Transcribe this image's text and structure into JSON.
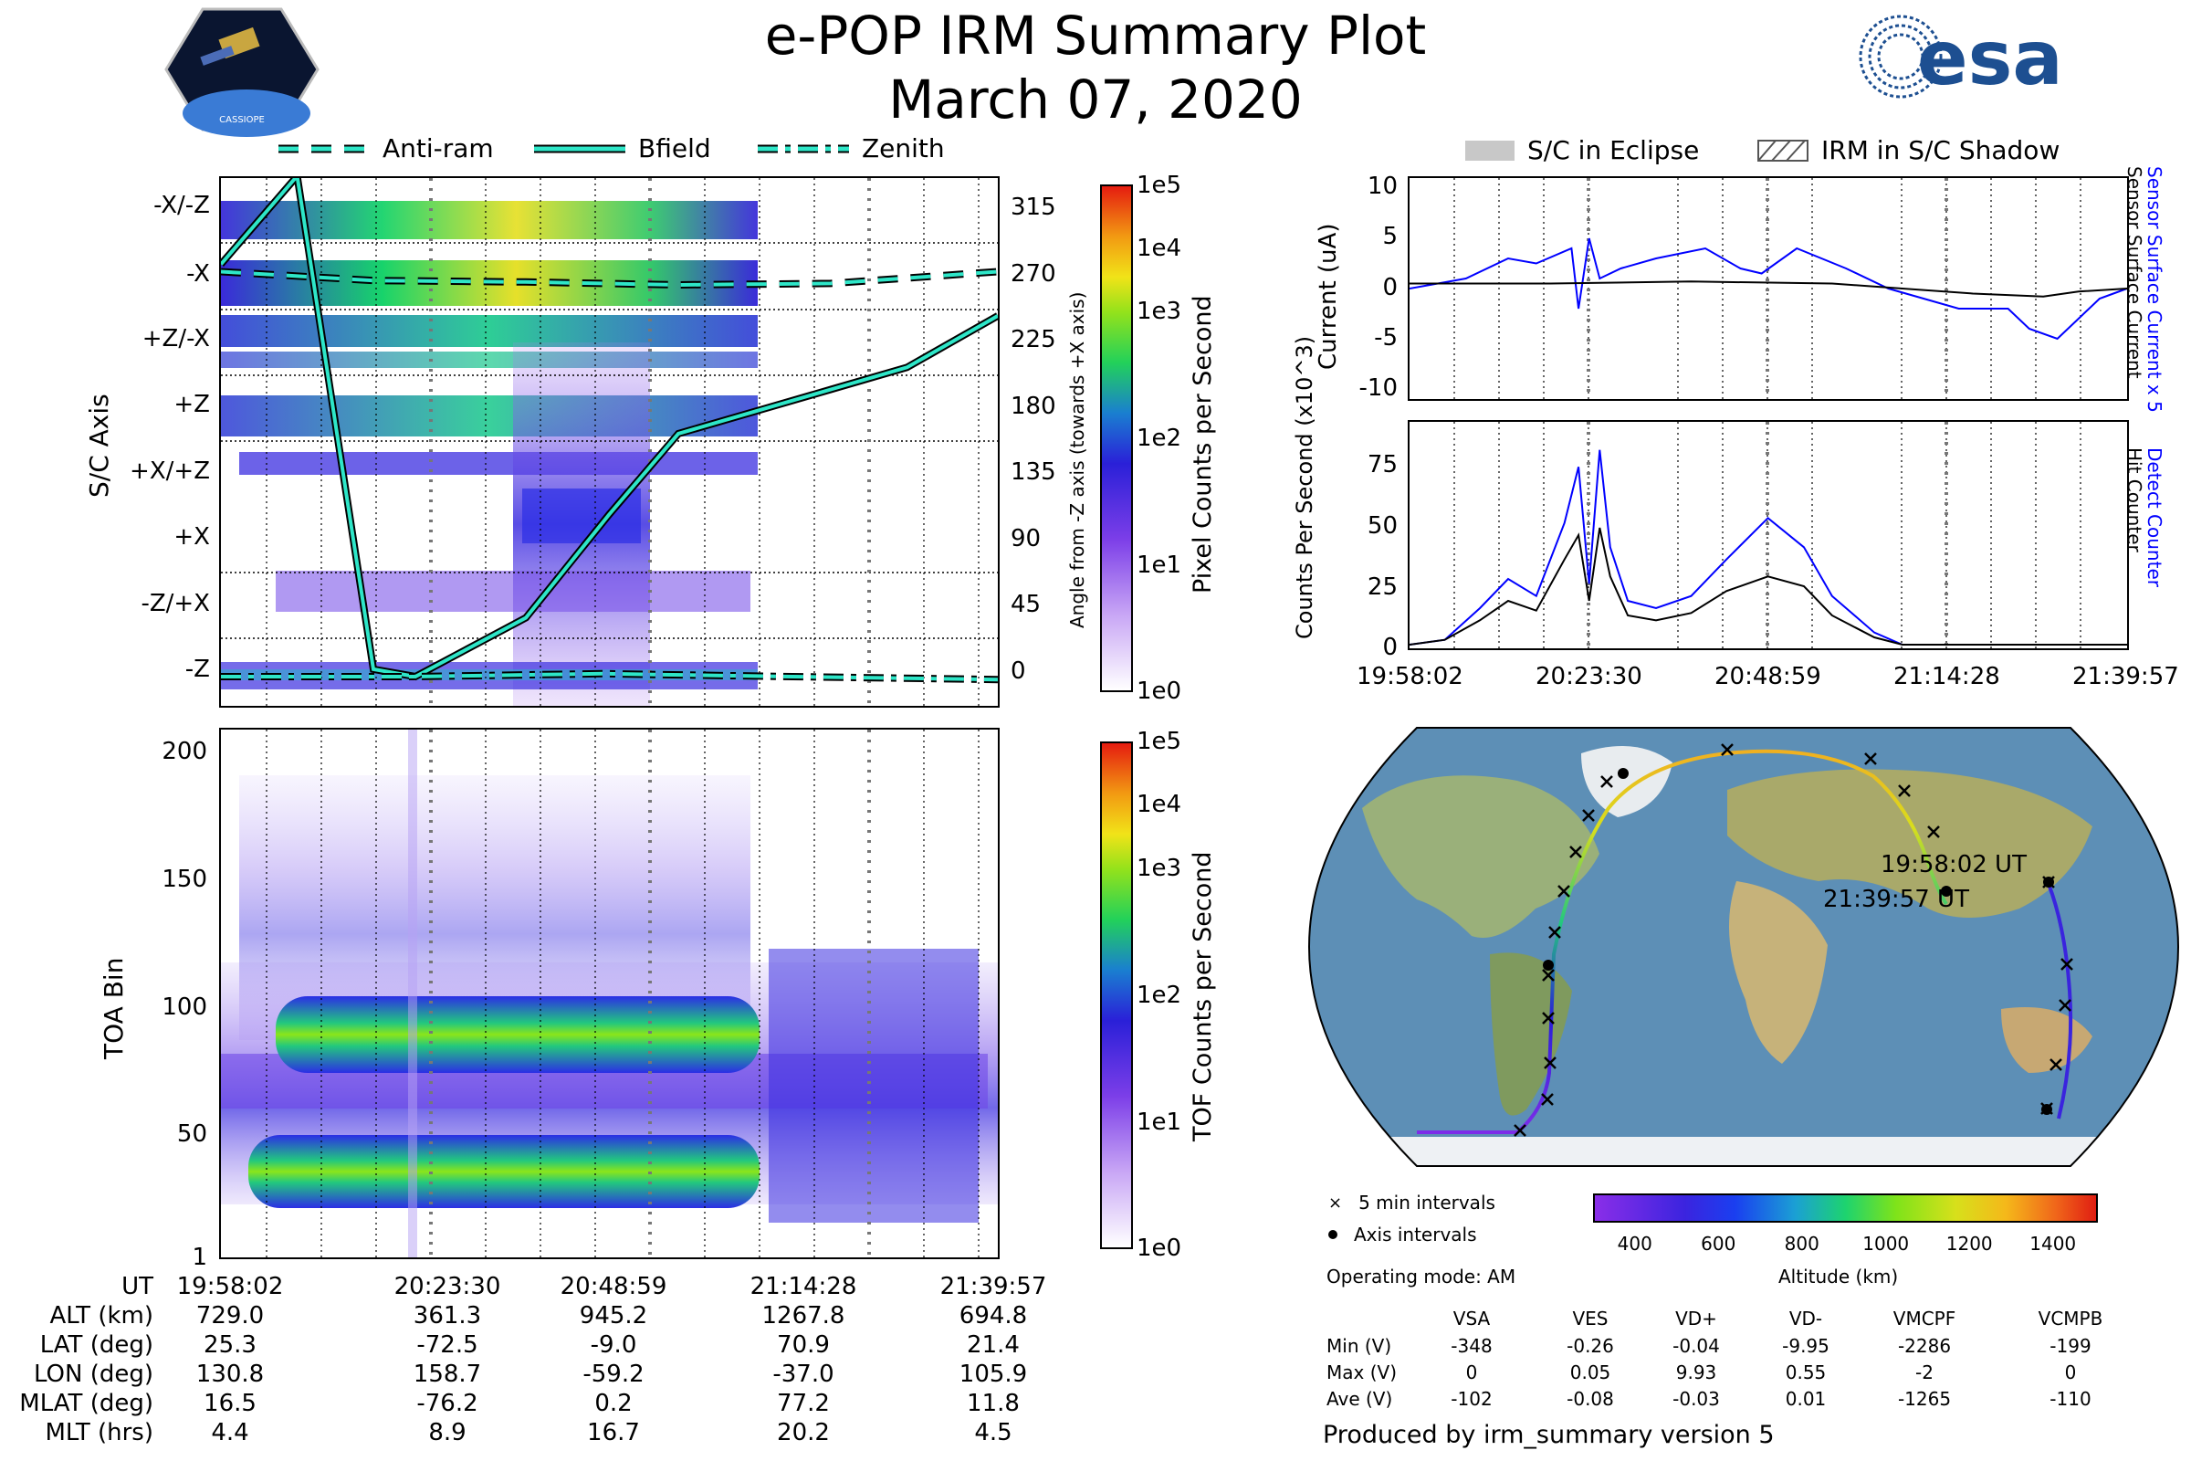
{
  "header": {
    "title": "e-POP IRM Summary Plot",
    "date": "March 07, 2020",
    "mission_logo_text": "CASSIOPE",
    "agency_logo_text": "esa"
  },
  "legend_top_left": [
    {
      "label": "Anti-ram",
      "style": "dashed"
    },
    {
      "label": "Bfield",
      "style": "solid"
    },
    {
      "label": "Zenith",
      "style": "dashdot"
    }
  ],
  "legend_top_right": [
    {
      "label": "S/C in Eclipse",
      "style": "gray-fill"
    },
    {
      "label": "IRM in S/C Shadow",
      "style": "hatch"
    }
  ],
  "colors": {
    "accent_cyan": "#2ee6c8",
    "detect_blue": "#0000ff",
    "hit_black": "#000000"
  },
  "time_ticks": [
    "19:58:02",
    "20:23:30",
    "20:48:59",
    "21:14:28",
    "21:39:57"
  ],
  "chart_data": [
    {
      "id": "sc-axis-panel",
      "type": "heatmap",
      "ylabel": "S/C Axis",
      "y_categories": [
        "-X/-Z",
        "-X",
        "+Z/-X",
        "+Z",
        "+X/+Z",
        "+X",
        "-Z/+X",
        "-Z"
      ],
      "right_axis_label": "Angle from -Z axis (towards +X axis)",
      "right_axis_ticks": [
        315,
        270,
        225,
        180,
        135,
        90,
        45,
        0
      ],
      "colorbar_label": "Pixel Counts per Second",
      "colorbar_ticks": [
        "1e5",
        "1e4",
        "1e3",
        "1e2",
        "1e1",
        "1e0"
      ],
      "series": [
        {
          "name": "Anti-ram",
          "x_min": [
            0,
            20,
            40,
            60,
            80,
            101.9
          ],
          "angle_deg": [
            275,
            269,
            268,
            266,
            267,
            275
          ]
        },
        {
          "name": "Bfield",
          "x_min": [
            0,
            10,
            20,
            25.5,
            40,
            50.9,
            60,
            70,
            80,
            90,
            101.9
          ],
          "angle_deg": [
            280,
            340,
            5,
            0,
            40,
            110,
            165,
            180,
            195,
            210,
            245
          ]
        },
        {
          "name": "Zenith",
          "x_min": [
            0,
            25,
            50,
            75,
            101.9
          ],
          "angle_deg": [
            0,
            0,
            2,
            0,
            -2
          ]
        }
      ]
    },
    {
      "id": "toa-panel",
      "type": "heatmap",
      "ylabel": "TOA Bin",
      "y_ticks": [
        1,
        50,
        100,
        150,
        200
      ],
      "ylim": [
        1,
        210
      ],
      "colorbar_label": "TOF Counts per Second",
      "colorbar_ticks": [
        "1e5",
        "1e4",
        "1e3",
        "1e2",
        "1e1",
        "1e0"
      ],
      "bands_toa_bin": [
        28,
        70
      ]
    },
    {
      "id": "current-panel",
      "type": "line",
      "ylabel": "Current (uA)",
      "y_ticks": [
        10,
        5,
        0,
        -5,
        -10
      ],
      "ylim": [
        -11,
        11
      ],
      "right_labels": [
        "Sensor Surface Current x 5",
        "Sensor Surface Current"
      ],
      "series": [
        {
          "name": "Sensor Surface Current x 5",
          "color": "#0000ff",
          "x_min": [
            0,
            8,
            14,
            18,
            23,
            24,
            25.5,
            27,
            30,
            35,
            42,
            47,
            50,
            55,
            62,
            68,
            73,
            78,
            85,
            88,
            92,
            95,
            98,
            101.9
          ],
          "y": [
            0,
            1,
            3,
            2.5,
            4,
            -2,
            5,
            1,
            2,
            3,
            4,
            2,
            1.5,
            4,
            2,
            0,
            -1,
            -2,
            -2,
            -4,
            -5,
            -3,
            -1,
            0
          ]
        },
        {
          "name": "Sensor Surface Current",
          "color": "#000000",
          "x_min": [
            0,
            20,
            40,
            60,
            70,
            80,
            90,
            95,
            101.9
          ],
          "y": [
            0.5,
            0.5,
            0.7,
            0.5,
            0,
            -0.5,
            -0.8,
            -0.3,
            0
          ]
        }
      ]
    },
    {
      "id": "counts-panel",
      "type": "line",
      "ylabel": "Counts Per Second (x10^3)",
      "y_ticks": [
        0,
        25,
        50,
        75
      ],
      "ylim": [
        0,
        90
      ],
      "right_labels": [
        "Detect Counter",
        "Hit Counter"
      ],
      "series": [
        {
          "name": "Detect Counter",
          "color": "#0000ff",
          "x_min": [
            0,
            5,
            10,
            14,
            18,
            22,
            24,
            25.5,
            27,
            28.5,
            31,
            35,
            40,
            45,
            50.9,
            56,
            60,
            66,
            70,
            101.9
          ],
          "y": [
            0,
            2,
            15,
            27,
            20,
            50,
            73,
            25,
            80,
            40,
            18,
            15,
            20,
            35,
            52,
            40,
            20,
            5,
            0,
            0
          ]
        },
        {
          "name": "Hit Counter",
          "color": "#000000",
          "x_min": [
            0,
            5,
            10,
            14,
            18,
            22,
            24,
            25.5,
            27,
            28.5,
            31,
            35,
            40,
            45,
            50.9,
            56,
            60,
            66,
            70,
            101.9
          ],
          "y": [
            0,
            2,
            10,
            18,
            14,
            35,
            45,
            18,
            48,
            28,
            12,
            10,
            13,
            22,
            28,
            24,
            12,
            3,
            0,
            0
          ]
        }
      ]
    },
    {
      "id": "map-panel",
      "type": "scatter",
      "title": "",
      "marker_labels": [
        "19:58:02 UT",
        "21:39:57 UT"
      ],
      "legend": [
        "5 min intervals",
        "Axis intervals"
      ],
      "colorbar_label": "Altitude (km)",
      "colorbar_ticks": [
        400,
        600,
        800,
        1000,
        1200,
        1400
      ]
    }
  ],
  "ephemeris": {
    "row_labels": [
      "UT",
      "ALT (km)",
      "LAT (deg)",
      "LON (deg)",
      "MLAT (deg)",
      "MLT (hrs)"
    ],
    "columns": [
      [
        "19:58:02",
        "729.0",
        "25.3",
        "130.8",
        "16.5",
        "4.4"
      ],
      [
        "20:23:30",
        "361.3",
        "-72.5",
        "158.7",
        "-76.2",
        "8.9"
      ],
      [
        "20:48:59",
        "945.2",
        "-9.0",
        "-59.2",
        "0.2",
        "16.7"
      ],
      [
        "21:14:28",
        "1267.8",
        "70.9",
        "-37.0",
        "77.2",
        "20.2"
      ],
      [
        "21:39:57",
        "694.8",
        "21.4",
        "105.9",
        "11.8",
        "4.5"
      ]
    ]
  },
  "operating_mode": "Operating mode: AM",
  "voltage_table": {
    "headers": [
      "VSA",
      "VES",
      "VD+",
      "VD-",
      "VMCPF",
      "VCMPB"
    ],
    "rows": [
      {
        "label": "Min (V)",
        "values": [
          "-348",
          "-0.26",
          "-0.04",
          "-9.95",
          "-2286",
          "-199"
        ]
      },
      {
        "label": "Max (V)",
        "values": [
          "0",
          "0.05",
          "9.93",
          "0.55",
          "-2",
          "0"
        ]
      },
      {
        "label": "Ave (V)",
        "values": [
          "-102",
          "-0.08",
          "-0.03",
          "0.01",
          "-1265",
          "-110"
        ]
      }
    ]
  },
  "footer": "Produced by irm_summary version 5"
}
